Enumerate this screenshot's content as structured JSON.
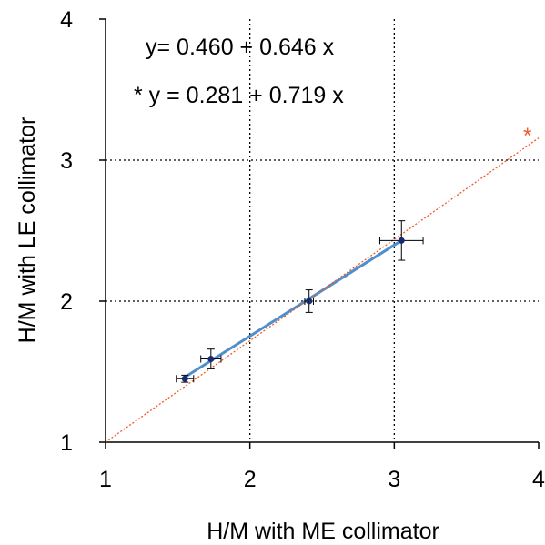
{
  "chart_data": {
    "type": "scatter",
    "xlabel": "H/M with ME collimator",
    "ylabel": "H/M with LE collimator",
    "xlim": [
      1,
      4
    ],
    "ylim": [
      1,
      4
    ],
    "x_ticks": [
      "1",
      "2",
      "3",
      "4"
    ],
    "y_ticks": [
      "1",
      "2",
      "3",
      "4"
    ],
    "grid": "dotted",
    "annotations": {
      "equation_1": "y= 0.460 + 0.646 x",
      "equation_2": "* y = 0.281 + 0.719 x",
      "star_marker": "*"
    },
    "points": [
      {
        "x": 1.55,
        "y": 1.45,
        "xerr": 0.06,
        "yerr": 0.025
      },
      {
        "x": 1.73,
        "y": 1.59,
        "xerr": 0.07,
        "yerr": 0.07
      },
      {
        "x": 2.41,
        "y": 2.0,
        "xerr": 0.03,
        "yerr": 0.08
      },
      {
        "x": 3.05,
        "y": 2.43,
        "xerr": 0.15,
        "yerr": 0.14
      }
    ],
    "fits": [
      {
        "intercept": 0.46,
        "slope": 0.646,
        "range": [
          1.55,
          3.05
        ],
        "color": "#4f8fcc",
        "style": "solid"
      },
      {
        "intercept": 0.281,
        "slope": 0.719,
        "range": [
          1.0,
          4.0
        ],
        "color": "#f05a28",
        "style": "dotted"
      }
    ],
    "colors": {
      "points": "#1a2a6e",
      "fit_main": "#4f8fcc",
      "fit_star": "#f05a28",
      "grid": "#000000"
    }
  }
}
